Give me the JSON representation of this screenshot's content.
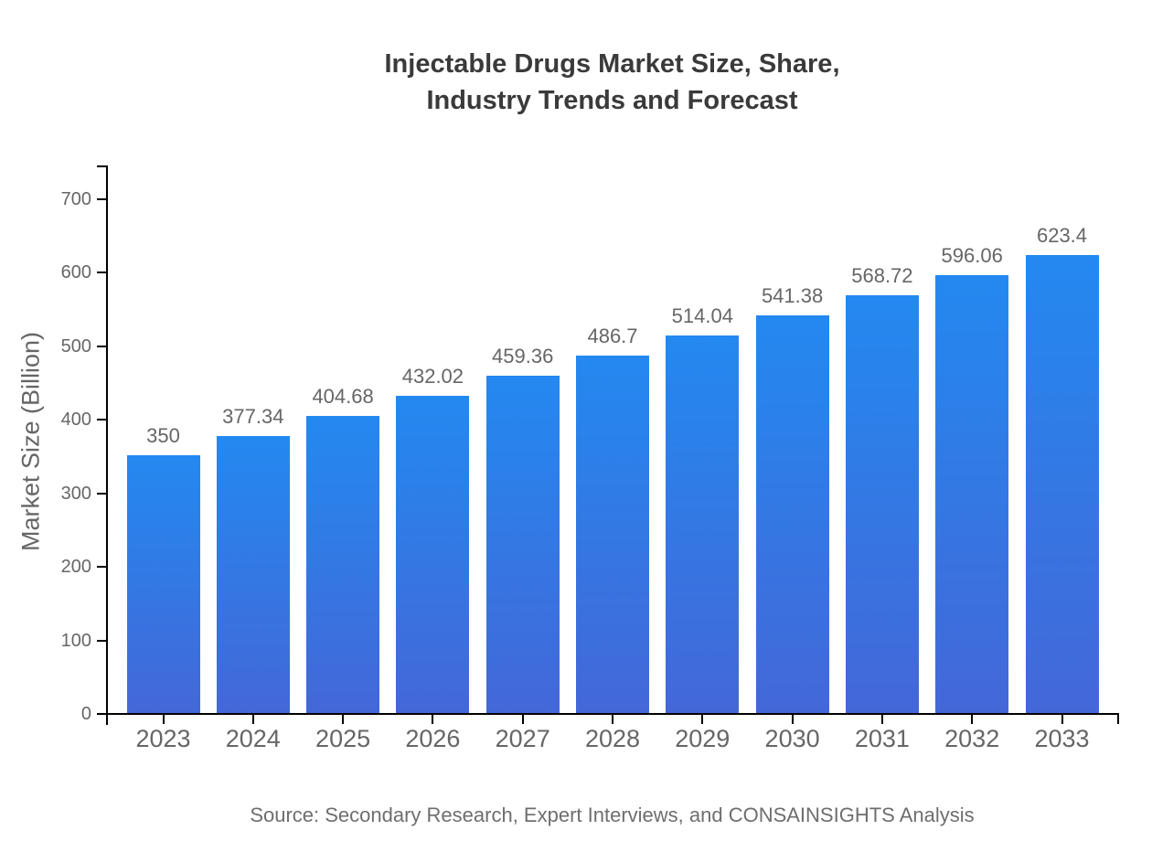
{
  "chart_data": {
    "type": "bar",
    "title": "Injectable Drugs Market Size, Share, Industry Trends and Forecast",
    "title_line1": "Injectable Drugs Market Size, Share,",
    "title_line2": "Industry Trends and Forecast",
    "ylabel": "Market Size (Billion)",
    "xlabel": "",
    "source": "Source: Secondary Research, Expert Interviews, and CONSAINSIGHTS Analysis",
    "categories": [
      "2023",
      "2024",
      "2025",
      "2026",
      "2027",
      "2028",
      "2029",
      "2030",
      "2031",
      "2032",
      "2033"
    ],
    "values": [
      350,
      377.34,
      404.68,
      432.02,
      459.36,
      486.7,
      514.04,
      541.38,
      568.72,
      596.06,
      623.4
    ],
    "value_labels": [
      "350",
      "377.34",
      "404.68",
      "432.02",
      "459.36",
      "486.7",
      "514.04",
      "541.38",
      "568.72",
      "596.06",
      "623.4"
    ],
    "yticks": [
      0,
      100,
      200,
      300,
      400,
      500,
      600,
      700
    ],
    "ylim": [
      0,
      746
    ],
    "grid": false,
    "legend_position": "none",
    "colors": {
      "bar_gradient_top": "#2389f0",
      "bar_gradient_bottom": "#4467d8",
      "axis": "#000000",
      "title_text": "#3a3a3a",
      "tick_text": "#666666",
      "value_label_text": "#666666",
      "source_text": "#6e6e6e"
    }
  }
}
